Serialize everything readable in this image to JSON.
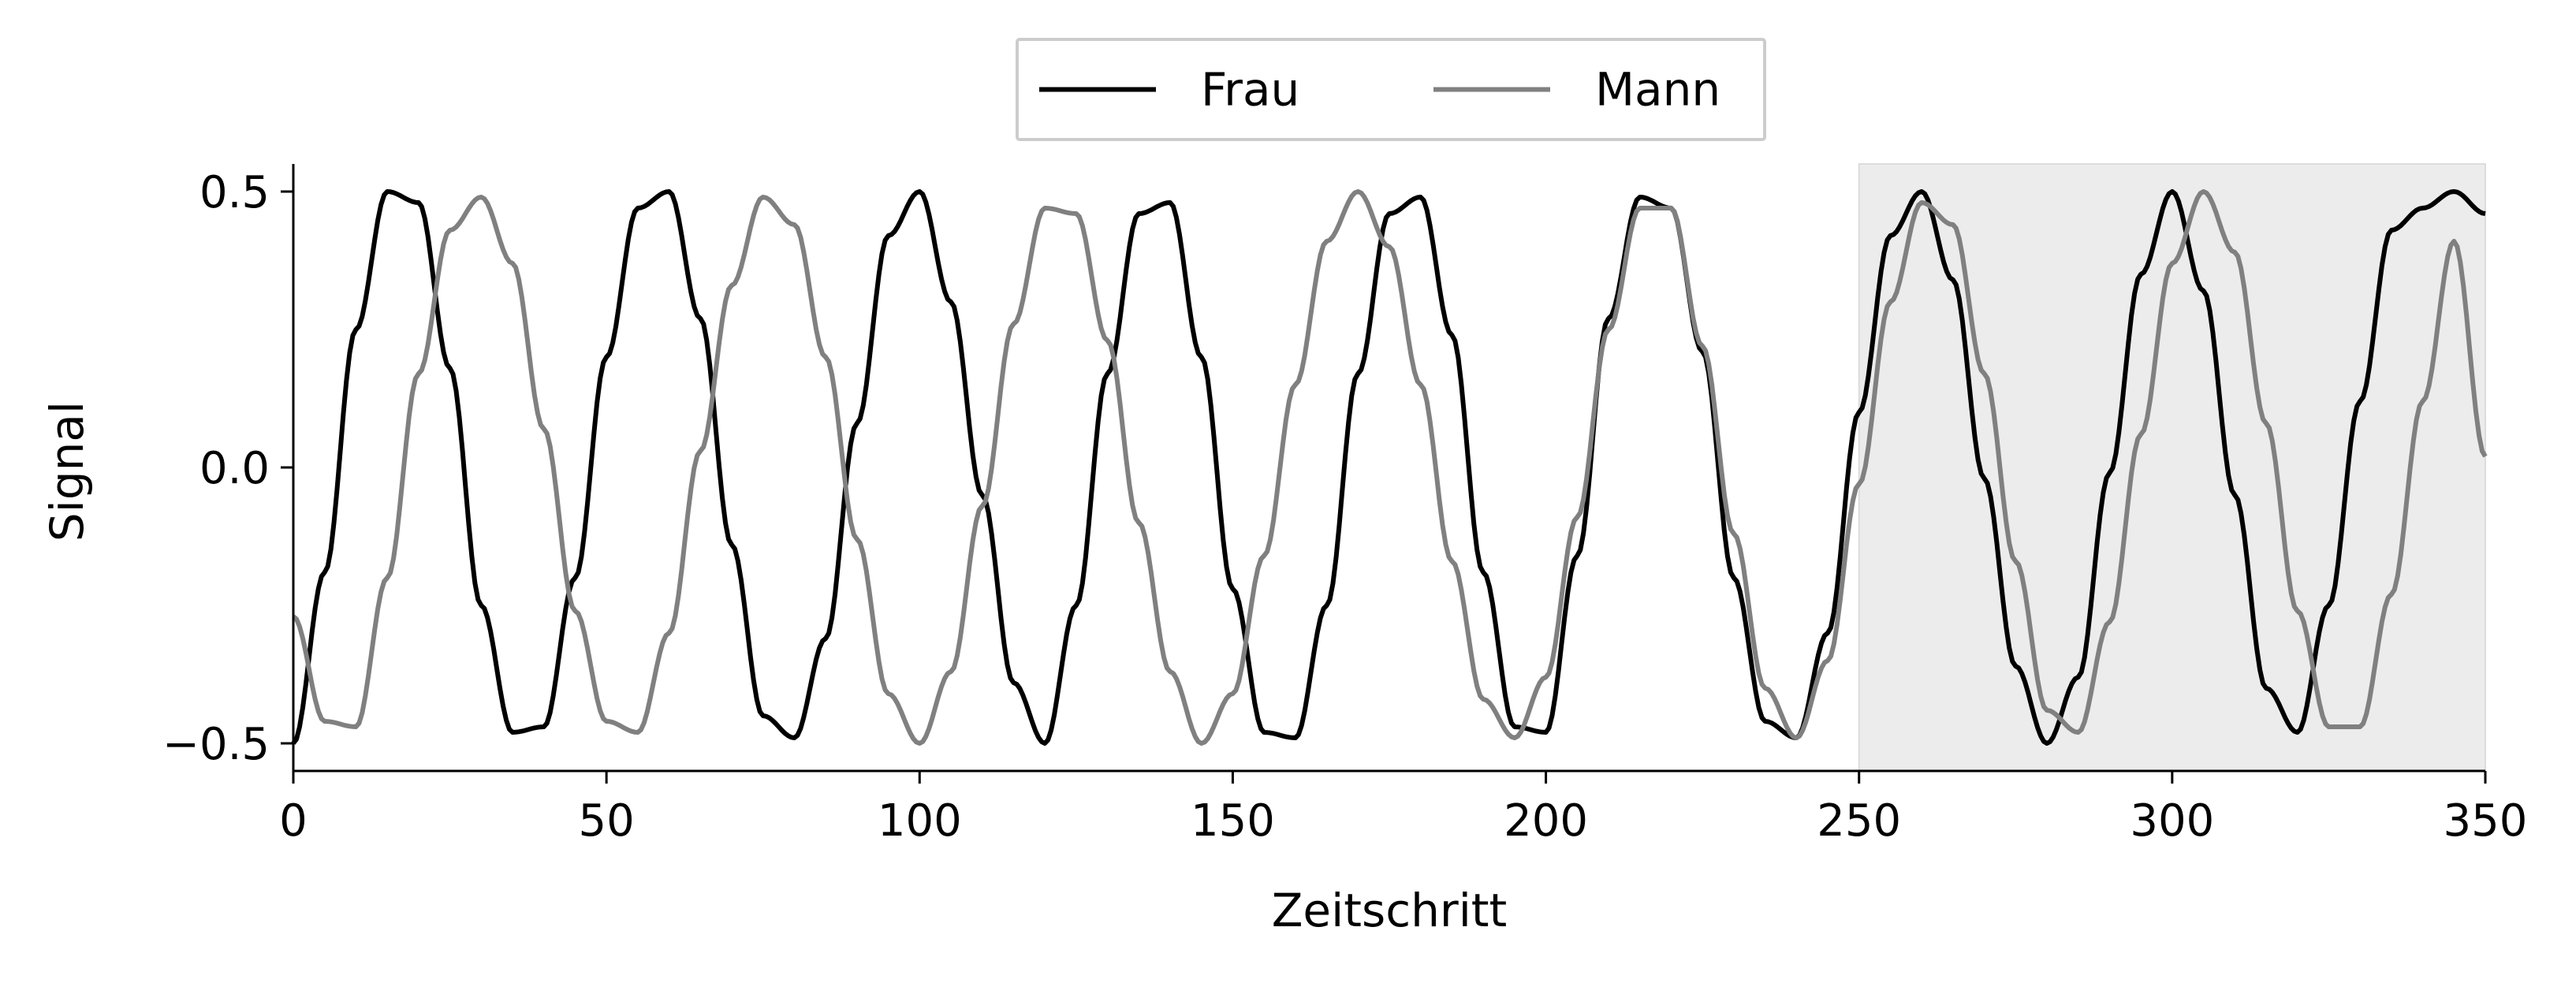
{
  "chart_data": {
    "type": "line",
    "xlabel": "Zeitschritt",
    "ylabel": "Signal",
    "xlim": [
      0,
      350
    ],
    "ylim": [
      -0.55,
      0.55
    ],
    "xticks": [
      0,
      50,
      100,
      150,
      200,
      250,
      300,
      350
    ],
    "xtick_labels": [
      "0",
      "50",
      "100",
      "150",
      "200",
      "250",
      "300",
      "350"
    ],
    "yticks": [
      -0.5,
      0.0,
      0.5
    ],
    "ytick_labels": [
      "−0.5",
      "0.0",
      "0.5"
    ],
    "legend_position": "top-center, above plot",
    "grid": false,
    "shaded_region": {
      "x_start": 250,
      "x_end": 350,
      "color": "#ececec"
    },
    "series": [
      {
        "name": "Frau",
        "color": "#000000",
        "x": [
          0,
          5,
          10,
          15,
          20,
          25,
          30,
          35,
          40,
          45,
          50,
          55,
          60,
          65,
          70,
          75,
          80,
          85,
          90,
          95,
          100,
          105,
          110,
          115,
          120,
          125,
          130,
          135,
          140,
          145,
          150,
          155,
          160,
          165,
          170,
          175,
          180,
          185,
          190,
          195,
          200,
          205,
          210,
          215,
          220,
          225,
          230,
          235,
          240,
          245,
          250,
          255,
          260,
          265,
          270,
          275,
          280,
          285,
          290,
          295,
          300,
          305,
          310,
          315,
          320,
          325,
          330,
          335,
          340,
          345,
          350
        ],
        "y": [
          -0.5,
          -0.19,
          0.25,
          0.5,
          0.48,
          0.18,
          -0.25,
          -0.48,
          -0.47,
          -0.2,
          0.2,
          0.47,
          0.5,
          0.27,
          -0.14,
          -0.45,
          -0.49,
          -0.31,
          0.08,
          0.42,
          0.5,
          0.3,
          -0.05,
          -0.39,
          -0.5,
          -0.25,
          0.17,
          0.46,
          0.48,
          0.2,
          -0.22,
          -0.48,
          -0.49,
          -0.25,
          0.17,
          0.46,
          0.49,
          0.24,
          -0.19,
          -0.47,
          -0.48,
          -0.16,
          0.27,
          0.49,
          0.47,
          0.21,
          -0.2,
          -0.46,
          -0.49,
          -0.3,
          0.1,
          0.42,
          0.5,
          0.34,
          -0.02,
          -0.36,
          -0.5,
          -0.38,
          -0.01,
          0.35,
          0.5,
          0.32,
          -0.05,
          -0.4,
          -0.48,
          -0.25,
          0.12,
          0.43,
          0.47,
          0.5,
          0.46
        ]
      },
      {
        "name": "Mann",
        "color": "#808080",
        "x": [
          0,
          5,
          10,
          15,
          20,
          25,
          30,
          35,
          40,
          45,
          50,
          55,
          60,
          65,
          70,
          75,
          80,
          85,
          90,
          95,
          100,
          105,
          110,
          115,
          120,
          125,
          130,
          135,
          140,
          145,
          150,
          155,
          160,
          165,
          170,
          175,
          180,
          185,
          190,
          195,
          200,
          205,
          210,
          215,
          220,
          225,
          230,
          235,
          240,
          245,
          250,
          255,
          260,
          265,
          270,
          275,
          280,
          285,
          290,
          295,
          300,
          305,
          310,
          315,
          320,
          325,
          330,
          335,
          340,
          345,
          350
        ],
        "y": [
          -0.27,
          -0.46,
          -0.47,
          -0.2,
          0.17,
          0.43,
          0.49,
          0.37,
          0.07,
          -0.26,
          -0.46,
          -0.48,
          -0.3,
          0.03,
          0.33,
          0.49,
          0.44,
          0.2,
          -0.13,
          -0.41,
          -0.5,
          -0.37,
          -0.07,
          0.26,
          0.47,
          0.46,
          0.23,
          -0.1,
          -0.37,
          -0.5,
          -0.41,
          -0.16,
          0.15,
          0.41,
          0.5,
          0.4,
          0.15,
          -0.17,
          -0.42,
          -0.49,
          -0.38,
          -0.09,
          0.25,
          0.47,
          0.47,
          0.22,
          -0.12,
          -0.4,
          -0.49,
          -0.35,
          -0.03,
          0.3,
          0.48,
          0.44,
          0.17,
          -0.17,
          -0.44,
          -0.48,
          -0.28,
          0.06,
          0.37,
          0.5,
          0.39,
          0.08,
          -0.26,
          -0.47,
          -0.47,
          -0.23,
          0.12,
          0.41,
          0.02
        ]
      }
    ]
  }
}
